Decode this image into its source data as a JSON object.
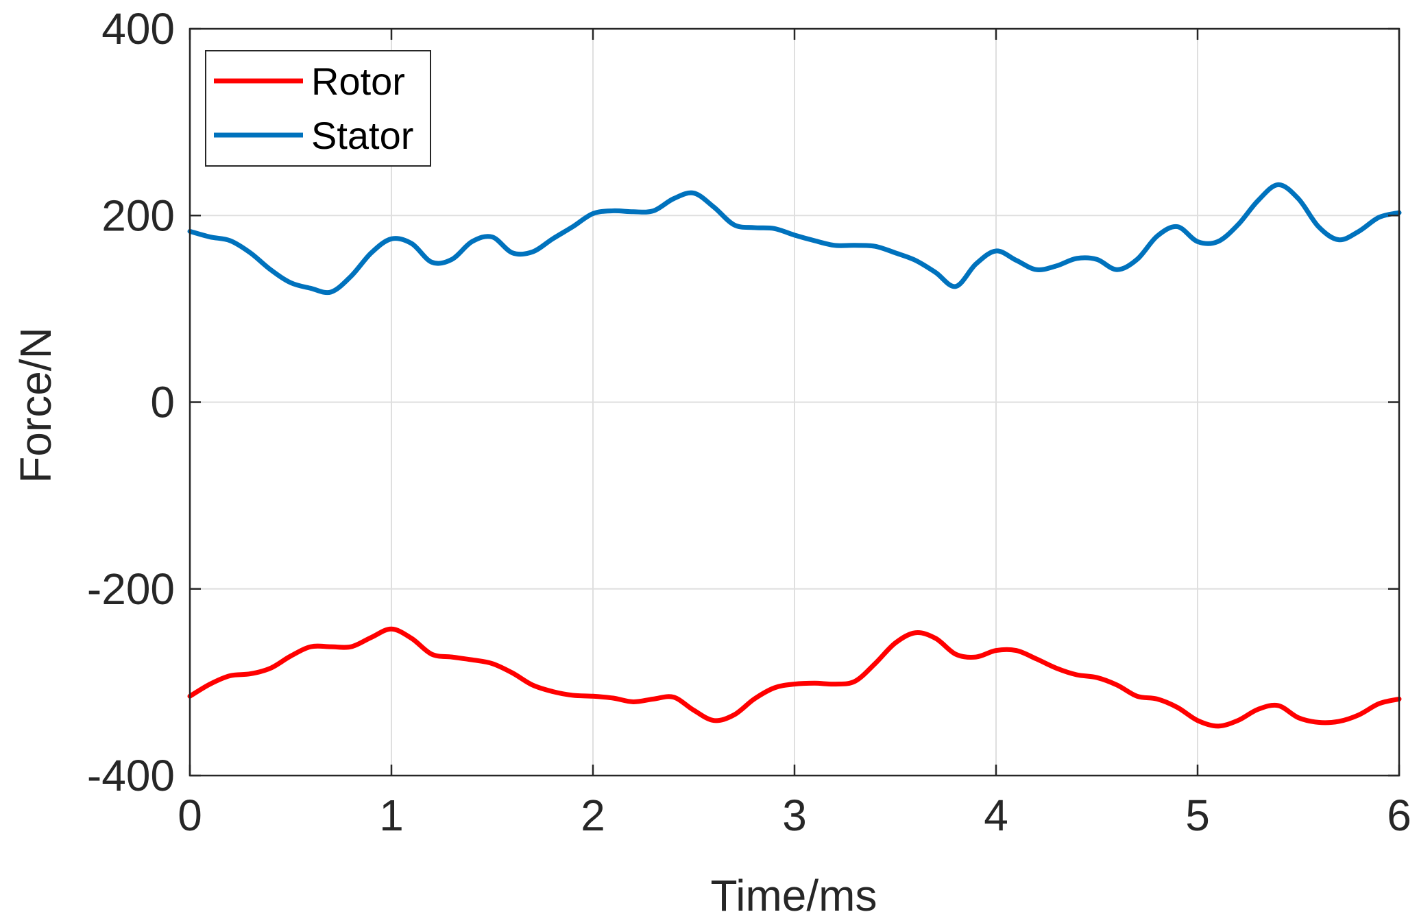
{
  "chart_data": {
    "type": "line",
    "title": "",
    "xlabel": "Time/ms",
    "ylabel": "Force/N",
    "xlim": [
      0,
      6
    ],
    "ylim": [
      -400,
      400
    ],
    "xticks": [
      0,
      1,
      2,
      3,
      4,
      5,
      6
    ],
    "yticks": [
      -400,
      -200,
      0,
      200,
      400
    ],
    "xtick_labels": [
      "0",
      "1",
      "2",
      "3",
      "4",
      "5",
      "6"
    ],
    "ytick_labels": [
      "-400",
      "-200",
      "0",
      "200",
      "400"
    ],
    "grid": true,
    "legend": {
      "position": "top-left",
      "entries": [
        "Rotor",
        "Stator"
      ]
    },
    "series": [
      {
        "name": "Rotor",
        "color": "#ff0000",
        "x": [
          0,
          0.1,
          0.2,
          0.3,
          0.4,
          0.5,
          0.6,
          0.7,
          0.8,
          0.9,
          1.0,
          1.1,
          1.2,
          1.3,
          1.4,
          1.5,
          1.6,
          1.7,
          1.8,
          1.9,
          2.0,
          2.1,
          2.2,
          2.3,
          2.4,
          2.5,
          2.6,
          2.7,
          2.8,
          2.9,
          3.0,
          3.1,
          3.2,
          3.3,
          3.4,
          3.5,
          3.6,
          3.7,
          3.8,
          3.9,
          4.0,
          4.1,
          4.2,
          4.3,
          4.4,
          4.5,
          4.6,
          4.7,
          4.8,
          4.9,
          5.0,
          5.1,
          5.2,
          5.3,
          5.4,
          5.5,
          5.6,
          5.7,
          5.8,
          5.9,
          6.0
        ],
        "y": [
          -315,
          -302,
          -293,
          -291,
          -285,
          -272,
          -262,
          -262,
          -262,
          -252,
          -243,
          -253,
          -270,
          -273,
          -276,
          -280,
          -290,
          -303,
          -310,
          -314,
          -315,
          -317,
          -321,
          -318,
          -316,
          -330,
          -341,
          -335,
          -318,
          -306,
          -302,
          -301,
          -302,
          -299,
          -280,
          -258,
          -247,
          -253,
          -270,
          -273,
          -266,
          -266,
          -275,
          -285,
          -292,
          -295,
          -303,
          -315,
          -318,
          -327,
          -341,
          -347,
          -341,
          -329,
          -325,
          -338,
          -343,
          -342,
          -335,
          -323,
          -318
        ]
      },
      {
        "name": "Stator",
        "color": "#0072bd",
        "x": [
          0,
          0.1,
          0.2,
          0.3,
          0.4,
          0.5,
          0.6,
          0.7,
          0.8,
          0.9,
          1.0,
          1.1,
          1.2,
          1.3,
          1.4,
          1.5,
          1.6,
          1.7,
          1.8,
          1.9,
          2.0,
          2.1,
          2.2,
          2.3,
          2.4,
          2.5,
          2.6,
          2.7,
          2.8,
          2.9,
          3.0,
          3.1,
          3.2,
          3.3,
          3.4,
          3.5,
          3.6,
          3.7,
          3.8,
          3.9,
          4.0,
          4.1,
          4.2,
          4.3,
          4.4,
          4.5,
          4.6,
          4.7,
          4.8,
          4.9,
          5.0,
          5.1,
          5.2,
          5.3,
          5.4,
          5.5,
          5.6,
          5.7,
          5.8,
          5.9,
          6.0
        ],
        "y": [
          183,
          177,
          173,
          160,
          142,
          128,
          122,
          118,
          135,
          160,
          175,
          170,
          150,
          153,
          172,
          177,
          160,
          161,
          175,
          188,
          202,
          205,
          204,
          205,
          218,
          224,
          209,
          190,
          187,
          186,
          179,
          173,
          168,
          168,
          167,
          160,
          152,
          139,
          124,
          148,
          162,
          152,
          142,
          146,
          154,
          153,
          142,
          153,
          178,
          188,
          172,
          172,
          190,
          216,
          233,
          218,
          188,
          174,
          183,
          198,
          203
        ]
      }
    ]
  }
}
